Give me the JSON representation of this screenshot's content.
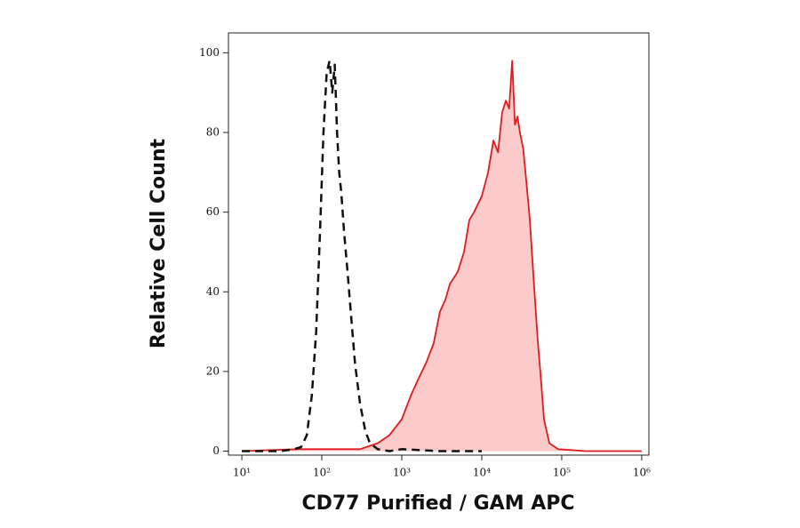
{
  "chart_data": {
    "type": "histogram-overlay",
    "x_label": "CD77 Purified / GAM APC",
    "y_label": "Relative Cell Count",
    "xscale": "log",
    "xlim": [
      6.8,
      1230000
    ],
    "ylim": [
      -1,
      105
    ],
    "xticks": [
      {
        "value": 10,
        "label": "10¹"
      },
      {
        "value": 100,
        "label": "10²"
      },
      {
        "value": 1000,
        "label": "10³"
      },
      {
        "value": 10000,
        "label": "10⁴"
      },
      {
        "value": 100000,
        "label": "10⁵"
      },
      {
        "value": 1000000,
        "label": "10⁶"
      }
    ],
    "yticks": [
      0,
      20,
      40,
      60,
      80,
      100
    ],
    "series": [
      {
        "color": "#111111",
        "dashed": true,
        "filled": false,
        "x": [
          10,
          30,
          45,
          55,
          65,
          75,
          85,
          95,
          105,
          115,
          125,
          135,
          145,
          155,
          165,
          175,
          190,
          210,
          230,
          260,
          300,
          350,
          400,
          500,
          700,
          1000,
          3000,
          10000
        ],
        "values": [
          0,
          0,
          0.5,
          1,
          4,
          14,
          30,
          55,
          80,
          95,
          98,
          90,
          97,
          80,
          70,
          65,
          55,
          45,
          35,
          22,
          12,
          5,
          2,
          0.5,
          0,
          0.5,
          0,
          0
        ]
      },
      {
        "color": "#e31a1c",
        "fill": "#fbcaca",
        "dashed": false,
        "filled": true,
        "x": [
          10,
          50,
          100,
          300,
          500,
          700,
          1000,
          1300,
          1600,
          2000,
          2500,
          3000,
          3500,
          4000,
          5000,
          6000,
          7000,
          8000,
          10000,
          12000,
          14000,
          16000,
          18000,
          20000,
          22000,
          24000,
          26000,
          28000,
          30000,
          33000,
          36000,
          40000,
          45000,
          50000,
          55000,
          60000,
          70000,
          90000,
          200000,
          1000000
        ],
        "values": [
          0,
          0.5,
          0.5,
          0.5,
          2,
          4,
          8,
          14,
          18,
          22,
          27,
          35,
          38,
          42,
          45,
          50,
          58,
          60,
          64,
          70,
          78,
          75,
          85,
          88,
          86,
          98,
          82,
          84,
          80,
          76,
          68,
          58,
          42,
          28,
          18,
          8,
          2,
          0.5,
          0,
          0
        ]
      }
    ]
  }
}
